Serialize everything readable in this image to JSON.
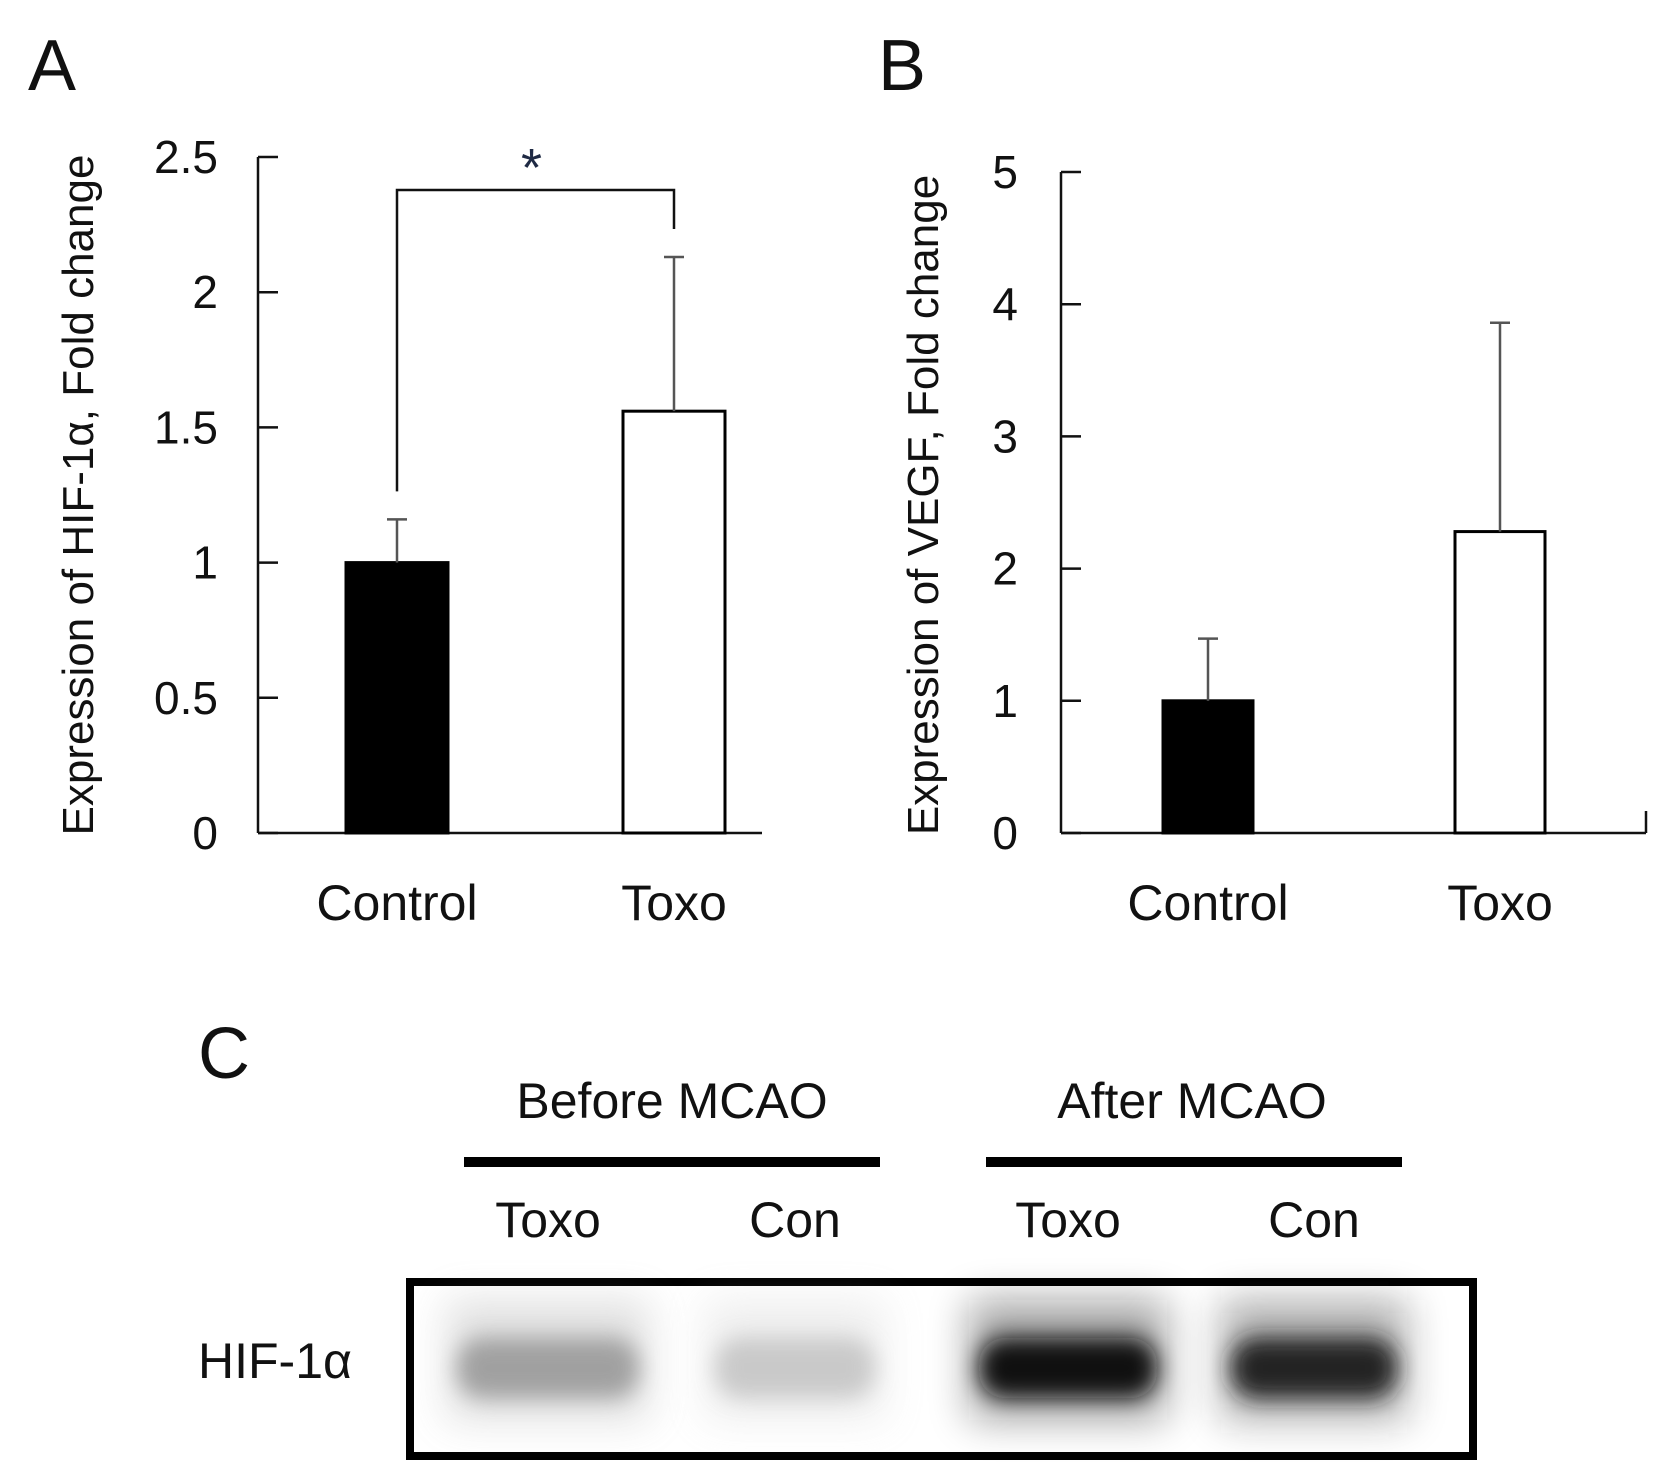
{
  "chart_data": [
    {
      "type": "bar",
      "panel": "A",
      "categories": [
        "Control",
        "Toxo"
      ],
      "values": [
        1.0,
        1.56
      ],
      "errors": [
        0.16,
        0.57
      ],
      "bar_colors": [
        "#000000",
        "#ffffff"
      ],
      "ylabel": "Expression of HIF-1α, Fold change",
      "ylim": [
        0,
        2.5
      ],
      "yticks": [
        0,
        0.5,
        1,
        1.5,
        2,
        2.5
      ],
      "ytick_labels": [
        "0",
        "0.5",
        "1",
        "1.5",
        "2",
        "2.5"
      ],
      "grid": false,
      "significance": {
        "between": [
          "Control",
          "Toxo"
        ],
        "label": "*"
      }
    },
    {
      "type": "bar",
      "panel": "B",
      "categories": [
        "Control",
        "Toxo"
      ],
      "values": [
        1.0,
        2.28
      ],
      "errors": [
        0.47,
        1.58
      ],
      "bar_colors": [
        "#000000",
        "#ffffff"
      ],
      "ylabel": "Expression of VEGF, Fold change",
      "ylim": [
        0,
        5
      ],
      "yticks": [
        0,
        1,
        2,
        3,
        4,
        5
      ],
      "ytick_labels": [
        "0",
        "1",
        "2",
        "3",
        "4",
        "5"
      ],
      "grid": false
    }
  ],
  "blot": {
    "panel": "C",
    "groups": [
      "Before MCAO",
      "After MCAO"
    ],
    "lanes": [
      "Toxo",
      "Con",
      "Toxo",
      "Con"
    ],
    "row_label": "HIF-1α",
    "band_intensity": [
      0.45,
      0.28,
      0.95,
      0.88
    ]
  }
}
